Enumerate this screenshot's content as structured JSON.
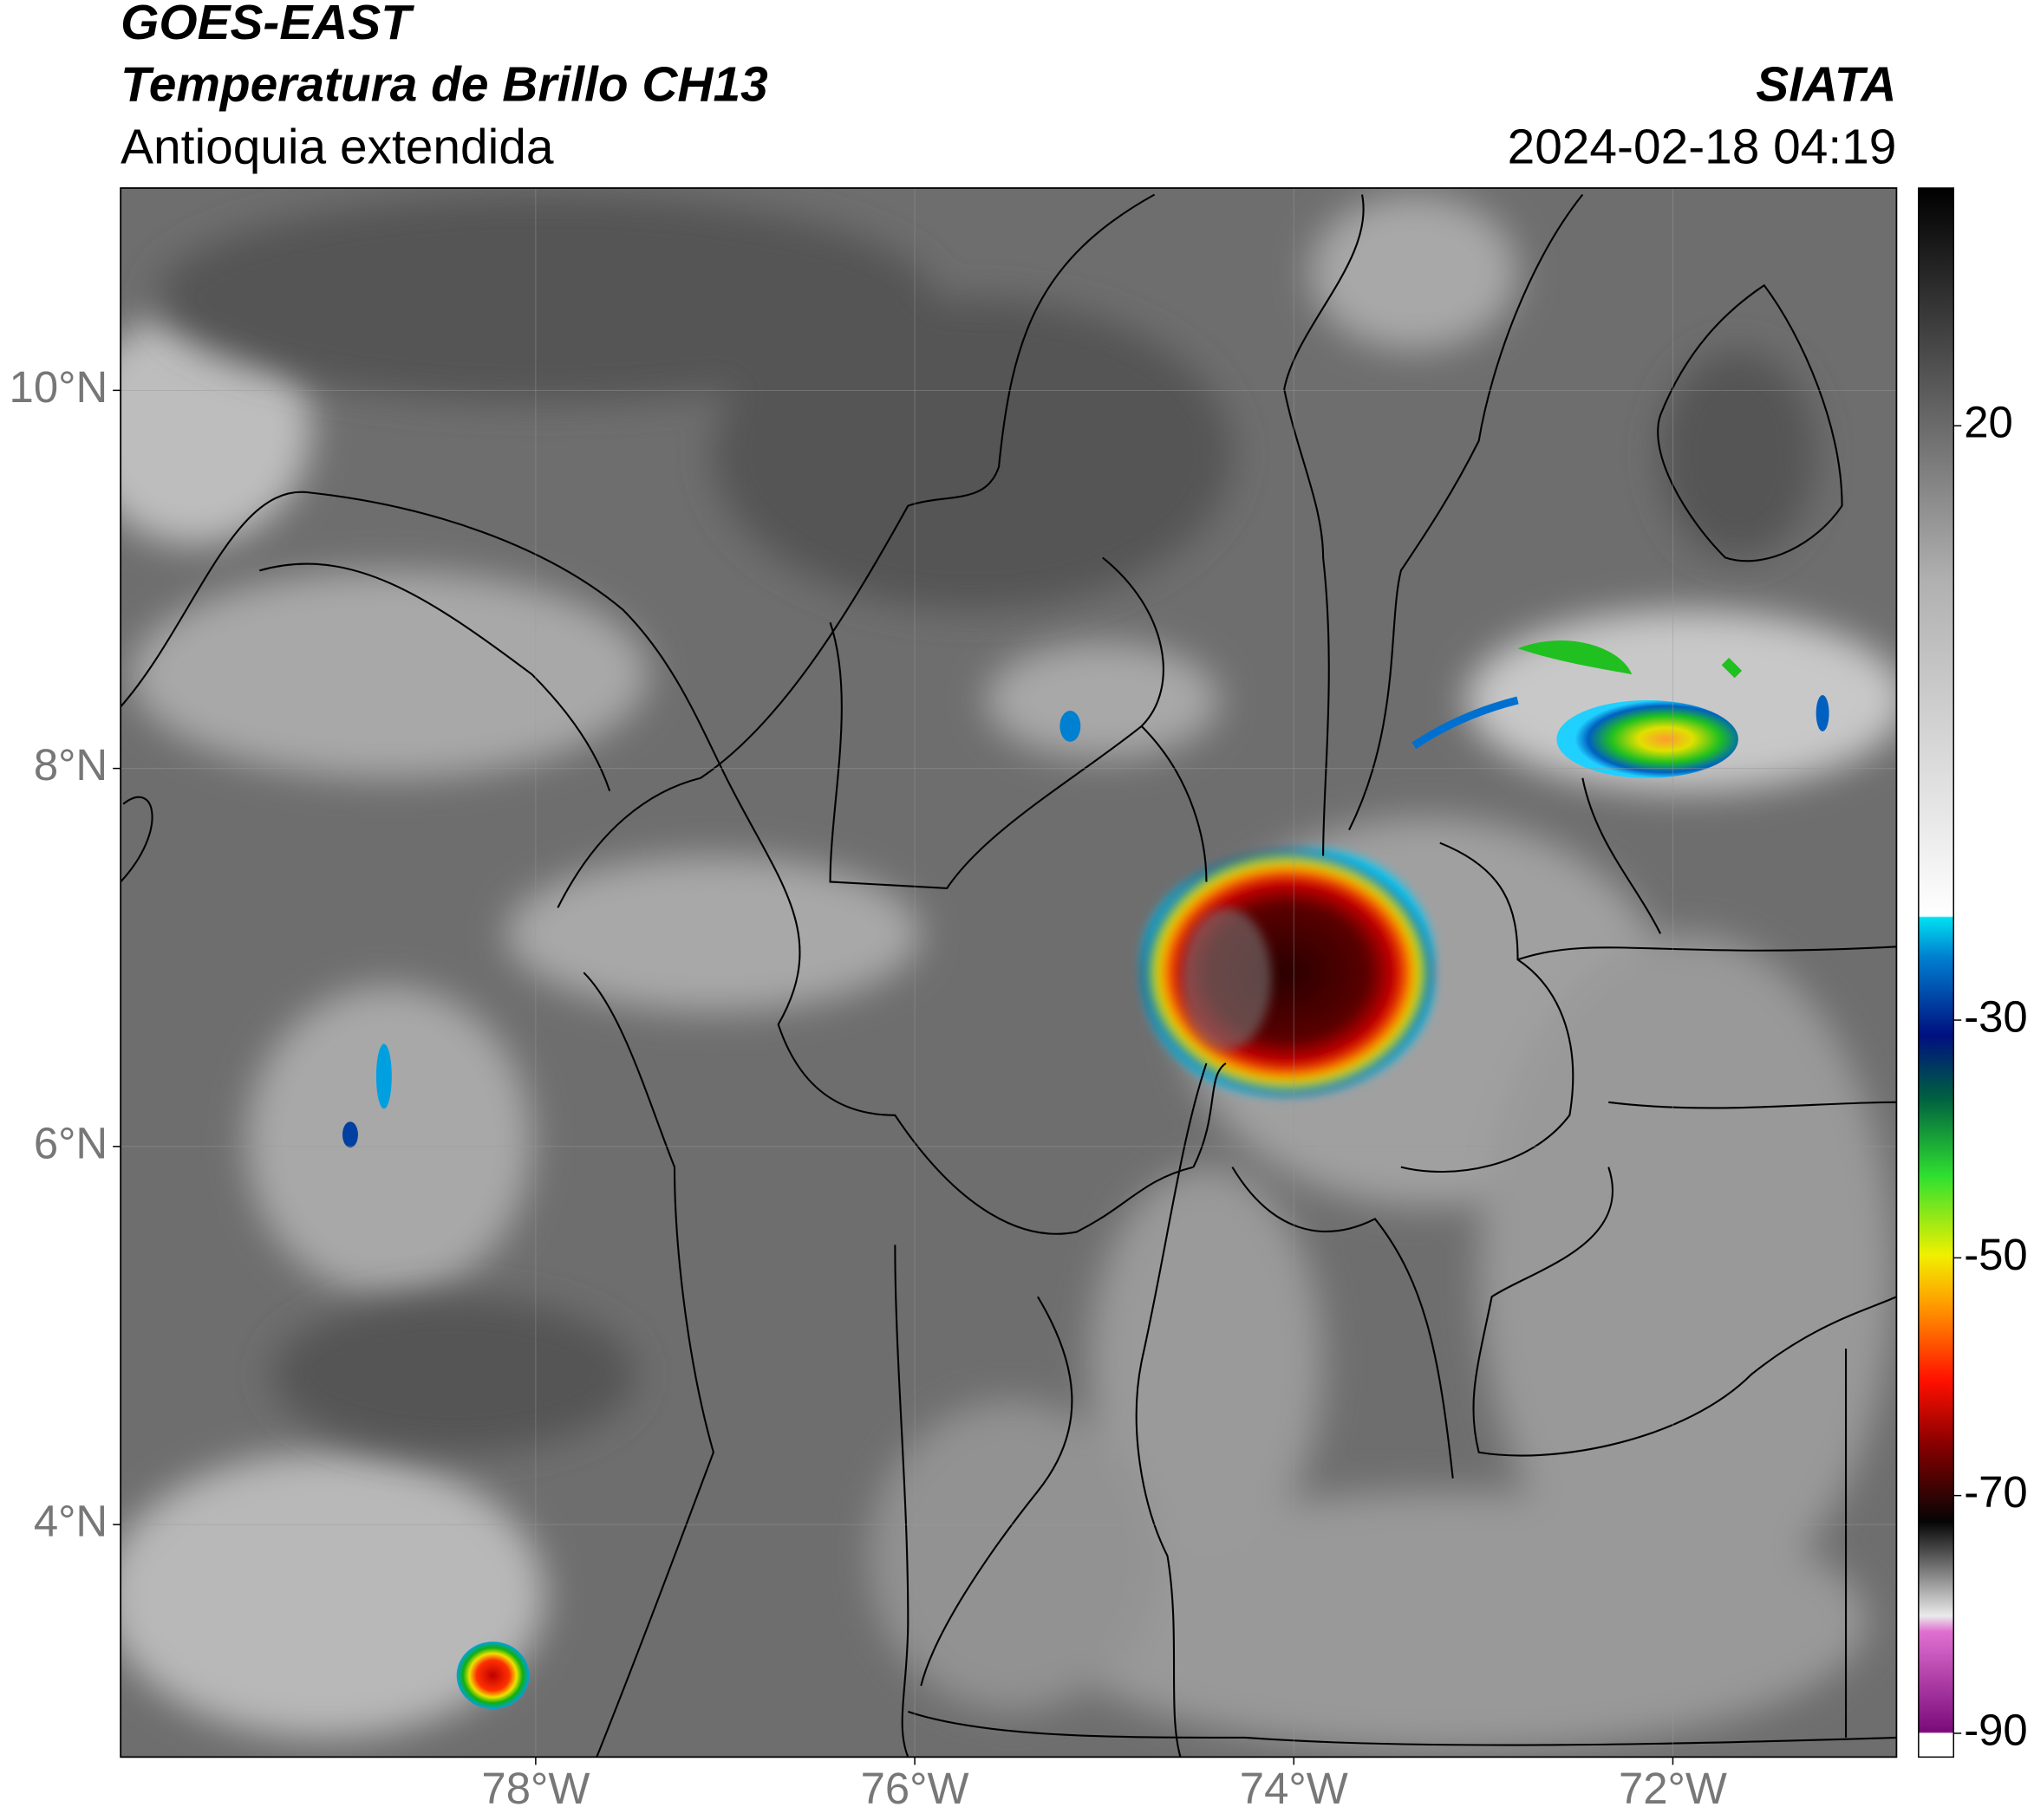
{
  "header": {
    "title": "GOES-EAST",
    "subtitle": "Temperatura de Brillo CH13",
    "region": "Antioquia extendida",
    "source": "SIATA",
    "timestamp": "2024-02-18 04:19"
  },
  "map": {
    "latlim": [
      2.77,
      11.07
    ],
    "lonlim": [
      -80.19,
      -70.82
    ],
    "latticks": [
      {
        "value": 4,
        "label": "4°N"
      },
      {
        "value": 6,
        "label": "6°N"
      },
      {
        "value": 8,
        "label": "8°N"
      },
      {
        "value": 10,
        "label": "10°N"
      }
    ],
    "lonticks": [
      {
        "value": -78,
        "label": "78°W"
      },
      {
        "value": -76,
        "label": "76°W"
      },
      {
        "value": -74,
        "label": "74°W"
      },
      {
        "value": -72,
        "label": "72°W"
      }
    ],
    "grid": true
  },
  "colorbar": {
    "lim": [
      -92,
      40
    ],
    "ticks": [
      20,
      -30,
      -50,
      -70,
      -90
    ]
  }
}
